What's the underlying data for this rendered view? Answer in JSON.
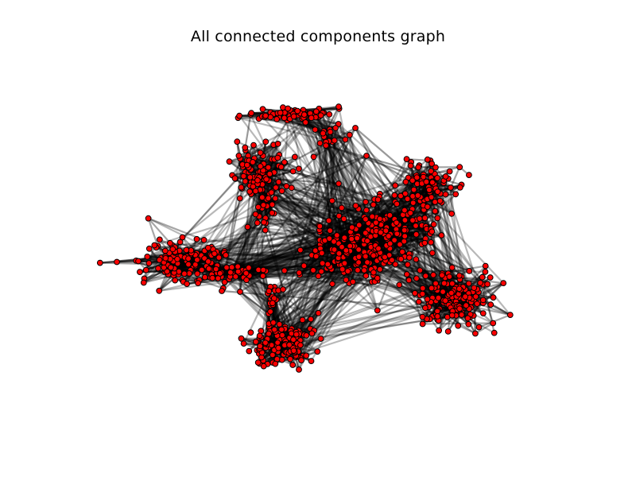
{
  "title": "All connected components graph",
  "colors": {
    "background": "#ffffff",
    "node_fill": "#ff0000",
    "node_edge": "#000000",
    "edge": "#000000",
    "title": "#000000"
  },
  "icons": []
}
